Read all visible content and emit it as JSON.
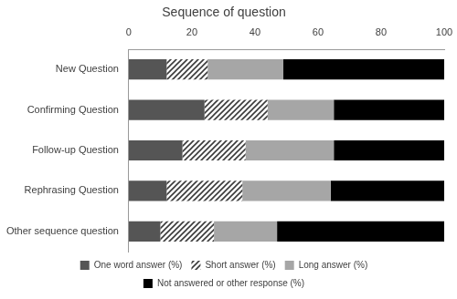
{
  "chart_data": {
    "type": "bar",
    "title": "Sequence of question",
    "orientation": "horizontal",
    "stacked": true,
    "grid": false,
    "legend": "bottom",
    "categories": [
      "New Question",
      "Confirming Question",
      "Follow-up Question",
      "Rephrasing Question",
      "Other sequence question"
    ],
    "series": [
      {
        "name": "One word answer (%)",
        "color": "#555555",
        "values": [
          12,
          24,
          17,
          12,
          10
        ]
      },
      {
        "name": "Short answer (%)",
        "color": "#3a3a3a",
        "line_style": "hatched",
        "values": [
          13,
          20,
          20,
          24,
          17
        ]
      },
      {
        "name": "Long answer (%)",
        "color": "#a6a6a6",
        "values": [
          24,
          21,
          28,
          28,
          20
        ]
      },
      {
        "name": "Not answered or other response (%)",
        "color": "#000000",
        "values": [
          51,
          35,
          35,
          36,
          53
        ]
      }
    ],
    "xlim": [
      0,
      100
    ],
    "xticks": [
      0,
      20,
      40,
      60,
      80,
      100
    ]
  }
}
